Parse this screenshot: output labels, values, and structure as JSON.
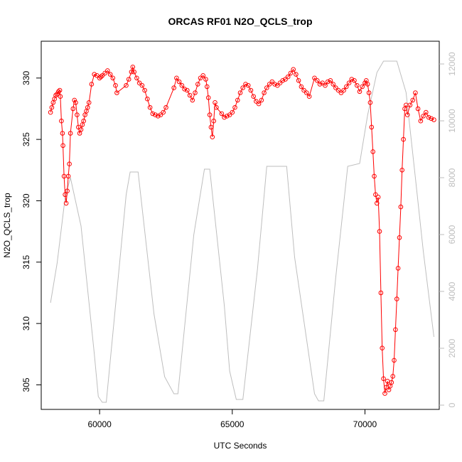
{
  "chart_data": {
    "type": "scatter",
    "title": "ORCAS RF01 N2O_QCLS_trop",
    "xlabel": "UTC Seconds",
    "ylabel": "N2O_QCLS_trop",
    "xlim": [
      57800,
      72800
    ],
    "ylim": [
      303,
      333
    ],
    "y2lim": [
      -150,
      12800
    ],
    "x_ticks": [
      60000,
      65000,
      70000
    ],
    "y_ticks": [
      305,
      310,
      315,
      320,
      325,
      330
    ],
    "y2_ticks": [
      0,
      2000,
      4000,
      6000,
      8000,
      10000,
      12000
    ],
    "grid": false,
    "colors": {
      "n2o": "#ff0000",
      "altitude": "#bebebe"
    },
    "series": [
      {
        "style": "points+line",
        "color": "#ff0000",
        "points": [
          [
            58150,
            327.2
          ],
          [
            58200,
            327.6
          ],
          [
            58250,
            328.0
          ],
          [
            58300,
            328.3
          ],
          [
            58350,
            328.6
          ],
          [
            58400,
            328.7
          ],
          [
            58450,
            328.9
          ],
          [
            58500,
            329.0
          ],
          [
            58520,
            328.5
          ],
          [
            58560,
            326.5
          ],
          [
            58600,
            325.5
          ],
          [
            58620,
            324.5
          ],
          [
            58660,
            322.0
          ],
          [
            58700,
            320.5
          ],
          [
            58740,
            319.8
          ],
          [
            58780,
            320.8
          ],
          [
            58820,
            322.0
          ],
          [
            58860,
            323.0
          ],
          [
            58900,
            325.5
          ],
          [
            59000,
            327.5
          ],
          [
            59050,
            328.2
          ],
          [
            59100,
            328.0
          ],
          [
            59150,
            327.0
          ],
          [
            59200,
            326.0
          ],
          [
            59250,
            325.5
          ],
          [
            59300,
            325.8
          ],
          [
            59350,
            326.2
          ],
          [
            59400,
            326.5
          ],
          [
            59450,
            327.0
          ],
          [
            59500,
            327.3
          ],
          [
            59550,
            327.6
          ],
          [
            59600,
            328.0
          ],
          [
            59700,
            329.5
          ],
          [
            59800,
            330.3
          ],
          [
            59900,
            330.2
          ],
          [
            60000,
            330.0
          ],
          [
            60050,
            330.1
          ],
          [
            60100,
            330.2
          ],
          [
            60200,
            330.4
          ],
          [
            60300,
            330.6
          ],
          [
            60400,
            330.3
          ],
          [
            60500,
            330.0
          ],
          [
            60600,
            329.4
          ],
          [
            60650,
            328.8
          ],
          [
            61000,
            329.4
          ],
          [
            61100,
            329.9
          ],
          [
            61200,
            330.5
          ],
          [
            61250,
            330.9
          ],
          [
            61300,
            330.5
          ],
          [
            61400,
            330.0
          ],
          [
            61500,
            329.6
          ],
          [
            61600,
            329.4
          ],
          [
            61700,
            329.0
          ],
          [
            61800,
            328.3
          ],
          [
            61900,
            327.6
          ],
          [
            62000,
            327.1
          ],
          [
            62100,
            327.0
          ],
          [
            62200,
            326.9
          ],
          [
            62300,
            327.0
          ],
          [
            62400,
            327.2
          ],
          [
            62500,
            327.6
          ],
          [
            62800,
            329.2
          ],
          [
            62900,
            330.0
          ],
          [
            63000,
            329.7
          ],
          [
            63100,
            329.4
          ],
          [
            63200,
            329.1
          ],
          [
            63300,
            329.0
          ],
          [
            63400,
            328.6
          ],
          [
            63500,
            328.2
          ],
          [
            63600,
            328.8
          ],
          [
            63700,
            329.5
          ],
          [
            63800,
            330.0
          ],
          [
            63900,
            330.2
          ],
          [
            64000,
            329.9
          ],
          [
            64050,
            329.3
          ],
          [
            64100,
            328.4
          ],
          [
            64150,
            327.0
          ],
          [
            64200,
            326.0
          ],
          [
            64250,
            325.2
          ],
          [
            64300,
            326.5
          ],
          [
            64350,
            328.0
          ],
          [
            64400,
            327.6
          ],
          [
            64600,
            327.1
          ],
          [
            64700,
            326.8
          ],
          [
            64800,
            326.9
          ],
          [
            64900,
            327.0
          ],
          [
            65000,
            327.2
          ],
          [
            65100,
            327.6
          ],
          [
            65200,
            328.2
          ],
          [
            65300,
            328.8
          ],
          [
            65400,
            329.2
          ],
          [
            65500,
            329.5
          ],
          [
            65600,
            329.4
          ],
          [
            65700,
            329.0
          ],
          [
            65800,
            328.5
          ],
          [
            65900,
            328.1
          ],
          [
            66000,
            327.9
          ],
          [
            66100,
            328.2
          ],
          [
            66200,
            328.8
          ],
          [
            66300,
            329.2
          ],
          [
            66400,
            329.5
          ],
          [
            66500,
            329.7
          ],
          [
            66600,
            329.5
          ],
          [
            66700,
            329.4
          ],
          [
            66800,
            329.6
          ],
          [
            66900,
            329.8
          ],
          [
            67000,
            329.9
          ],
          [
            67100,
            330.1
          ],
          [
            67200,
            330.4
          ],
          [
            67300,
            330.7
          ],
          [
            67400,
            330.3
          ],
          [
            67500,
            329.8
          ],
          [
            67600,
            329.3
          ],
          [
            67700,
            329.0
          ],
          [
            67800,
            328.8
          ],
          [
            67900,
            328.5
          ],
          [
            68100,
            330.0
          ],
          [
            68200,
            329.8
          ],
          [
            68300,
            329.5
          ],
          [
            68400,
            329.6
          ],
          [
            68500,
            329.4
          ],
          [
            68600,
            329.7
          ],
          [
            68700,
            329.8
          ],
          [
            68800,
            329.5
          ],
          [
            68900,
            329.2
          ],
          [
            69000,
            329.0
          ],
          [
            69100,
            328.8
          ],
          [
            69200,
            329.0
          ],
          [
            69300,
            329.3
          ],
          [
            69400,
            329.6
          ],
          [
            69500,
            329.9
          ],
          [
            69600,
            329.8
          ],
          [
            69700,
            329.4
          ],
          [
            69800,
            328.9
          ],
          [
            69900,
            329.3
          ],
          [
            70000,
            329.6
          ],
          [
            70050,
            329.8
          ],
          [
            70100,
            329.5
          ],
          [
            70150,
            328.8
          ],
          [
            70200,
            328.0
          ],
          [
            70250,
            326.0
          ],
          [
            70300,
            324.0
          ],
          [
            70350,
            322.0
          ],
          [
            70400,
            320.5
          ],
          [
            70450,
            319.8
          ],
          [
            70500,
            320.3
          ],
          [
            70550,
            317.5
          ],
          [
            70600,
            312.5
          ],
          [
            70650,
            308.0
          ],
          [
            70700,
            305.5
          ],
          [
            70750,
            304.3
          ],
          [
            70800,
            304.8
          ],
          [
            70850,
            305.3
          ],
          [
            70900,
            304.6
          ],
          [
            70950,
            304.9
          ],
          [
            71000,
            305.2
          ],
          [
            71050,
            305.7
          ],
          [
            71100,
            307.0
          ],
          [
            71150,
            309.5
          ],
          [
            71200,
            312.0
          ],
          [
            71250,
            314.5
          ],
          [
            71300,
            317.0
          ],
          [
            71350,
            319.5
          ],
          [
            71400,
            322.5
          ],
          [
            71450,
            325.0
          ],
          [
            71500,
            327.5
          ],
          [
            71550,
            327.8
          ],
          [
            71600,
            327.0
          ],
          [
            71700,
            327.8
          ],
          [
            71800,
            328.2
          ],
          [
            71900,
            328.8
          ],
          [
            72000,
            327.5
          ],
          [
            72100,
            326.5
          ],
          [
            72200,
            326.9
          ],
          [
            72300,
            327.2
          ],
          [
            72400,
            326.8
          ],
          [
            72500,
            326.7
          ],
          [
            72600,
            326.6
          ]
        ]
      },
      {
        "style": "line",
        "color": "#bebebe",
        "points": [
          [
            58150,
            3600
          ],
          [
            58400,
            5000
          ],
          [
            58700,
            7300
          ],
          [
            58900,
            8000
          ],
          [
            59300,
            6300
          ],
          [
            59500,
            4500
          ],
          [
            59800,
            1800
          ],
          [
            59950,
            300
          ],
          [
            60100,
            100
          ],
          [
            60250,
            100
          ],
          [
            61000,
            7400
          ],
          [
            61150,
            8200
          ],
          [
            61450,
            8200
          ],
          [
            62050,
            3200
          ],
          [
            62450,
            1000
          ],
          [
            62800,
            400
          ],
          [
            62950,
            400
          ],
          [
            63550,
            6000
          ],
          [
            63950,
            8300
          ],
          [
            64150,
            8300
          ],
          [
            64700,
            3500
          ],
          [
            64900,
            1200
          ],
          [
            65150,
            200
          ],
          [
            65400,
            200
          ],
          [
            65950,
            4800
          ],
          [
            66300,
            8400
          ],
          [
            66550,
            8400
          ],
          [
            67050,
            8400
          ],
          [
            67350,
            5200
          ],
          [
            68100,
            400
          ],
          [
            68250,
            150
          ],
          [
            68450,
            150
          ],
          [
            68900,
            4500
          ],
          [
            69350,
            8400
          ],
          [
            69800,
            8500
          ],
          [
            70100,
            10200
          ],
          [
            70450,
            11700
          ],
          [
            70700,
            12100
          ],
          [
            71200,
            12100
          ],
          [
            71550,
            11000
          ],
          [
            71900,
            8000
          ],
          [
            72200,
            5400
          ],
          [
            72600,
            2400
          ]
        ]
      }
    ]
  }
}
